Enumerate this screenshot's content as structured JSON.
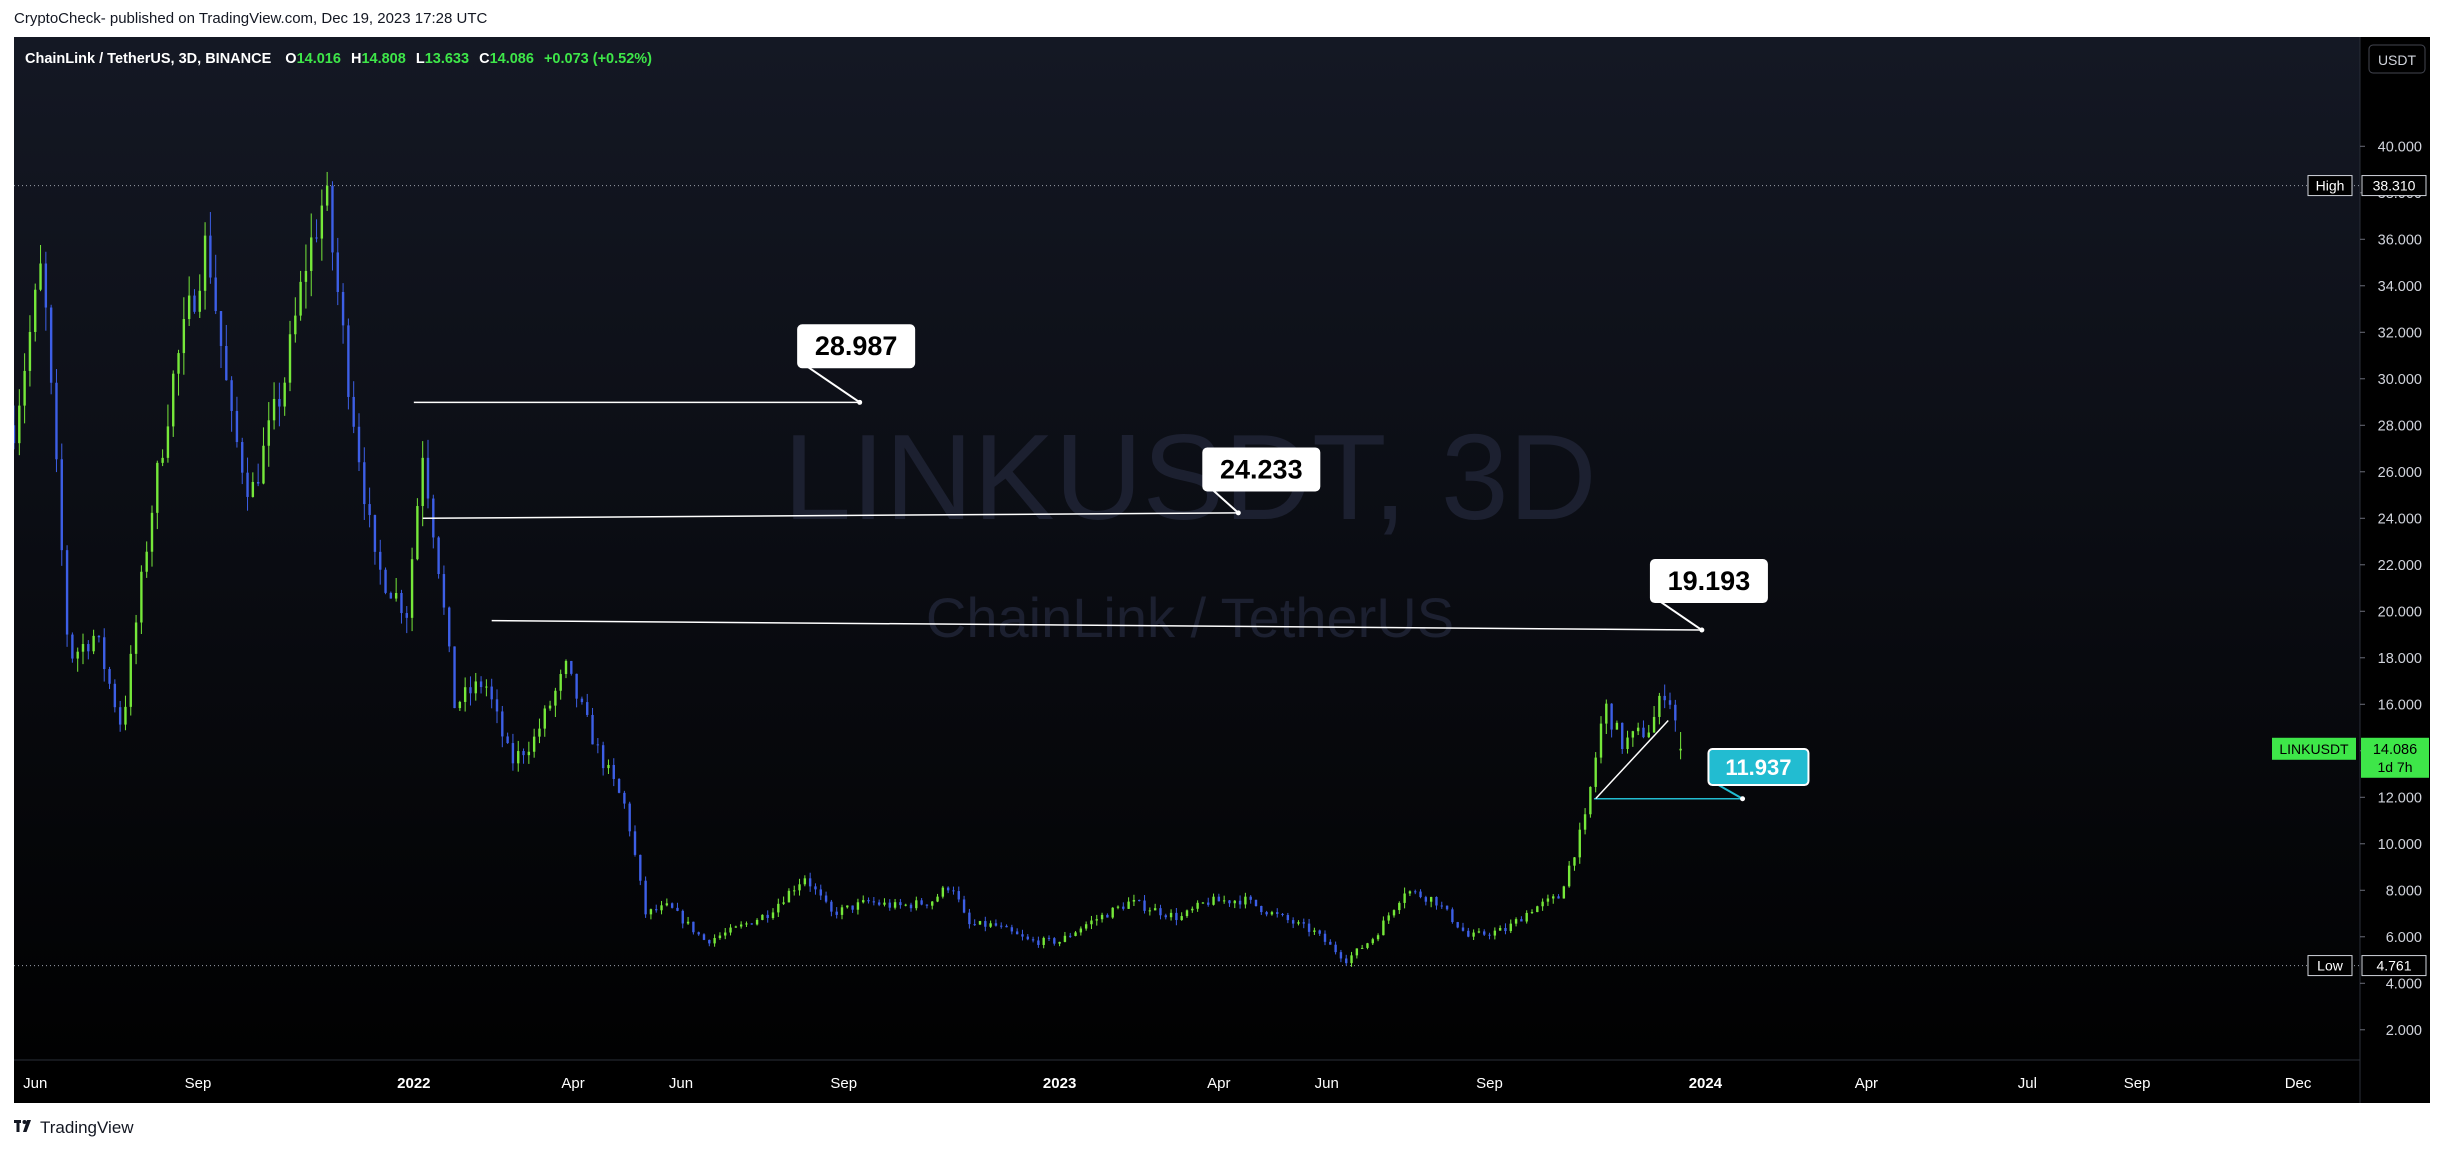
{
  "publish_line": "CryptoCheck- published on TradingView.com, Dec 19, 2023 17:28 UTC",
  "footer": {
    "brand": "TradingView",
    "logo_icon": "tradingview-logo-icon"
  },
  "colors": {
    "background_top": "#141824",
    "background_bottom": "#000000",
    "up_candle": "#76e83a",
    "down_candle": "#3d5fe6",
    "annotation_line": "#ffffff",
    "cyan_label": "#22bcd1",
    "last_price_badge": "#3ee649"
  },
  "chart_data": {
    "type": "candlestick",
    "symbol_line": "ChainLink / TetherUS, 3D, BINANCE",
    "ohlc": {
      "o_label": "O",
      "o": "14.016",
      "h_label": "H",
      "h": "14.808",
      "l_label": "L",
      "l": "13.633",
      "c_label": "C",
      "c": "14.086",
      "change": "+0.073 (+0.52%)"
    },
    "watermark": {
      "title": "LINKUSDT, 3D",
      "subtitle": "ChainLink / TetherUS"
    },
    "currency": "USDT",
    "y_range": [
      0.7,
      44.7
    ],
    "y_ticks": [
      "2.000",
      "4.000",
      "6.000",
      "8.000",
      "10.000",
      "12.000",
      "14.000",
      "16.000",
      "18.000",
      "20.000",
      "22.000",
      "24.000",
      "26.000",
      "28.000",
      "30.000",
      "32.000",
      "34.000",
      "36.000",
      "38.000",
      "40.000"
    ],
    "x_range": [
      "2021-05-20",
      "2025-01-05"
    ],
    "x_ticks": [
      {
        "date": "2021-06-01",
        "label": "Jun"
      },
      {
        "date": "2021-09-01",
        "label": "Sep"
      },
      {
        "date": "2022-01-01",
        "label": "2022"
      },
      {
        "date": "2022-04-01",
        "label": "Apr"
      },
      {
        "date": "2022-06-01",
        "label": "Jun"
      },
      {
        "date": "2022-09-01",
        "label": "Sep"
      },
      {
        "date": "2023-01-01",
        "label": "2023"
      },
      {
        "date": "2023-04-01",
        "label": "Apr"
      },
      {
        "date": "2023-06-01",
        "label": "Jun"
      },
      {
        "date": "2023-09-01",
        "label": "Sep"
      },
      {
        "date": "2024-01-01",
        "label": "2024"
      },
      {
        "date": "2024-04-01",
        "label": "Apr"
      },
      {
        "date": "2024-07-01",
        "label": "Jul"
      },
      {
        "date": "2024-09-01",
        "label": "Sep"
      },
      {
        "date": "2024-12-01",
        "label": "Dec"
      }
    ],
    "high": {
      "label": "High",
      "value": "38.310"
    },
    "low": {
      "label": "Low",
      "value": "4.761"
    },
    "last_price": {
      "symbol": "LINKUSDT",
      "value": "14.086",
      "countdown": "1d 7h"
    },
    "price_path": [
      [
        "2021-05-20",
        28.0
      ],
      [
        "2021-06-05",
        35.0
      ],
      [
        "2021-06-20",
        18.0
      ],
      [
        "2021-07-05",
        19.0
      ],
      [
        "2021-07-20",
        15.0
      ],
      [
        "2021-08-05",
        24.0
      ],
      [
        "2021-08-18",
        30.0
      ],
      [
        "2021-09-06",
        36.0
      ],
      [
        "2021-09-20",
        28.0
      ],
      [
        "2021-10-01",
        25.0
      ],
      [
        "2021-10-20",
        30.0
      ],
      [
        "2021-11-01",
        35.0
      ],
      [
        "2021-11-12",
        38.0
      ],
      [
        "2021-11-25",
        30.0
      ],
      [
        "2021-12-10",
        22.0
      ],
      [
        "2021-12-28",
        20.0
      ],
      [
        "2022-01-06",
        27.0
      ],
      [
        "2022-01-15",
        22.0
      ],
      [
        "2022-01-24",
        16.0
      ],
      [
        "2022-02-10",
        17.0
      ],
      [
        "2022-02-25",
        13.5
      ],
      [
        "2022-03-10",
        14.5
      ],
      [
        "2022-03-28",
        17.5
      ],
      [
        "2022-04-15",
        14.0
      ],
      [
        "2022-05-01",
        11.5
      ],
      [
        "2022-05-12",
        7.0
      ],
      [
        "2022-05-25",
        7.3
      ],
      [
        "2022-06-15",
        5.8
      ],
      [
        "2022-07-01",
        6.3
      ],
      [
        "2022-07-20",
        7.0
      ],
      [
        "2022-08-10",
        8.6
      ],
      [
        "2022-08-25",
        7.0
      ],
      [
        "2022-09-15",
        7.5
      ],
      [
        "2022-10-01",
        7.3
      ],
      [
        "2022-10-20",
        7.5
      ],
      [
        "2022-11-01",
        8.3
      ],
      [
        "2022-11-10",
        6.5
      ],
      [
        "2022-11-25",
        6.5
      ],
      [
        "2022-12-15",
        5.8
      ],
      [
        "2023-01-01",
        5.8
      ],
      [
        "2023-01-15",
        6.5
      ],
      [
        "2023-02-10",
        7.5
      ],
      [
        "2023-03-10",
        6.8
      ],
      [
        "2023-03-25",
        7.5
      ],
      [
        "2023-04-15",
        7.6
      ],
      [
        "2023-05-01",
        7.0
      ],
      [
        "2023-05-25",
        6.2
      ],
      [
        "2023-06-12",
        5.0
      ],
      [
        "2023-06-28",
        6.0
      ],
      [
        "2023-07-15",
        8.0
      ],
      [
        "2023-08-01",
        7.6
      ],
      [
        "2023-08-20",
        6.0
      ],
      [
        "2023-09-10",
        6.3
      ],
      [
        "2023-09-25",
        7.2
      ],
      [
        "2023-10-10",
        7.7
      ],
      [
        "2023-10-25",
        11.0
      ],
      [
        "2023-11-05",
        16.0
      ],
      [
        "2023-11-15",
        14.3
      ],
      [
        "2023-12-01",
        15.0
      ],
      [
        "2023-12-10",
        16.8
      ],
      [
        "2023-12-19",
        14.086
      ]
    ],
    "annotations": [
      {
        "label": "28.987",
        "line_start": [
          "2022-01-01",
          28.987
        ],
        "line_end": [
          "2022-09-10",
          28.987
        ],
        "box_at": [
          "2022-09-08",
          31.4
        ],
        "style": "white"
      },
      {
        "label": "24.233",
        "line_start": [
          "2022-01-06",
          24.0
        ],
        "line_end": [
          "2023-04-12",
          24.233
        ],
        "box_at": [
          "2023-04-25",
          26.1
        ],
        "style": "white"
      },
      {
        "label": "19.193",
        "line_start": [
          "2022-02-14",
          19.6
        ],
        "line_end": [
          "2023-12-30",
          19.193
        ],
        "box_at": [
          "2024-01-03",
          21.3
        ],
        "style": "white"
      },
      {
        "label": "11.937",
        "line_start": [
          "2023-10-30",
          11.937
        ],
        "line_end": [
          "2024-01-22",
          11.937
        ],
        "box_at": [
          "2024-01-31",
          13.3
        ],
        "style": "cyan"
      }
    ],
    "trendline": {
      "from": [
        "2023-10-31",
        11.94
      ],
      "to": [
        "2023-12-11",
        15.3
      ]
    }
  }
}
